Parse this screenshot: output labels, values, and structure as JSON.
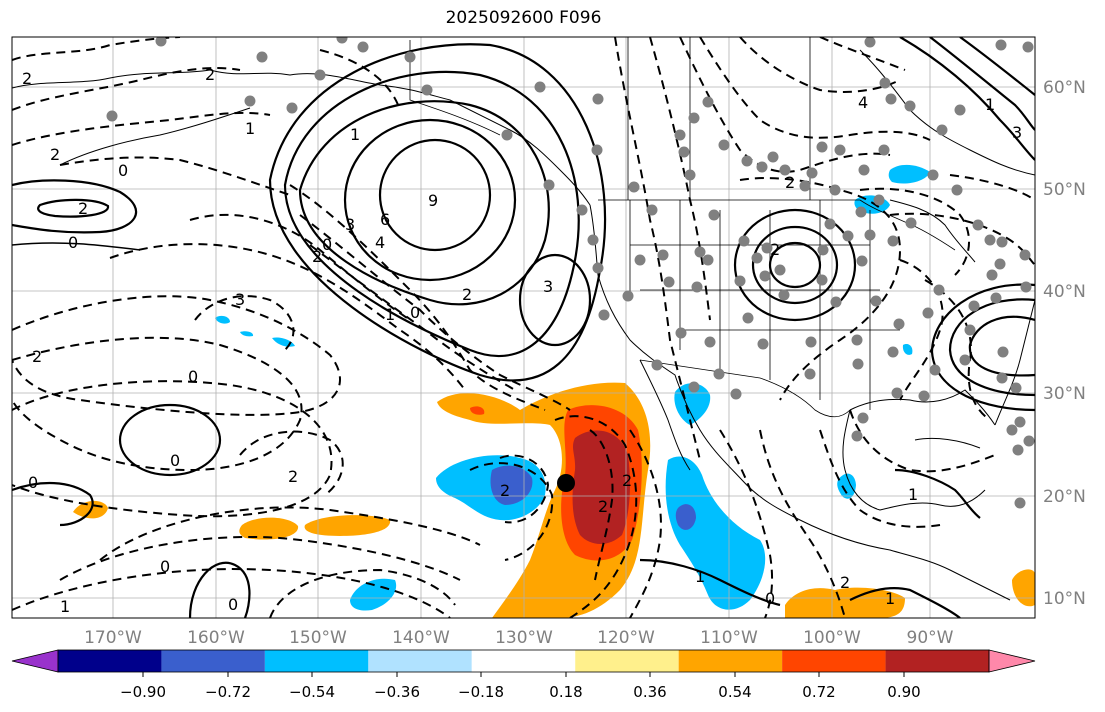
{
  "title": "2025092600 F096",
  "colors": {
    "background": "#ffffff",
    "grid": "#b0b0b0",
    "coast": "#000000",
    "station": "#808080",
    "contour": "#000000",
    "marker": "#000000"
  },
  "longitude_labels": [
    "170°W",
    "160°W",
    "150°W",
    "140°W",
    "130°W",
    "120°W",
    "110°W",
    "100°W",
    "90°W"
  ],
  "latitude_labels": [
    "60°N",
    "50°N",
    "40°N",
    "30°N",
    "20°N",
    "10°N"
  ],
  "colorbar": {
    "tick_labels": [
      "−0.90",
      "−0.72",
      "−0.54",
      "−0.36",
      "−0.18",
      "0.18",
      "0.36",
      "0.54",
      "0.72",
      "0.90"
    ],
    "bin_colors": [
      "#9932cc",
      "#00008b",
      "#3a5fcd",
      "#00bfff",
      "#b0e2ff",
      "#ffffff",
      "#fff08c",
      "#ffa500",
      "#ff4500",
      "#b22222",
      "#ff88aa"
    ]
  },
  "contour_labels": [
    "2",
    "2",
    "1",
    "2",
    "0",
    "2",
    "0",
    "1",
    "9",
    "6",
    "3",
    "4",
    "2",
    "3",
    "0",
    "2",
    "0",
    "1",
    "3",
    "2",
    "0",
    "2",
    "0",
    "0",
    "1",
    "0",
    "0",
    "2",
    "2",
    "2",
    "1",
    "0",
    "2",
    "1",
    "2",
    "1",
    "4",
    "3",
    "2",
    "1"
  ],
  "chart_data": {
    "type": "contour-map",
    "title": "2025092600 F096",
    "region": {
      "lon_range": [
        "178°W",
        "78°W"
      ],
      "lat_range": [
        "8°N",
        "65°N"
      ]
    },
    "contour_style": "solid = positive, dashed = negative",
    "shading_levels": [
      "−0.90",
      "−0.72",
      "−0.54",
      "−0.36",
      "−0.18",
      "0.18",
      "0.36",
      "0.54",
      "0.72",
      "0.90"
    ],
    "marker": {
      "lon": -125.5,
      "lat": 21,
      "label": ""
    }
  }
}
